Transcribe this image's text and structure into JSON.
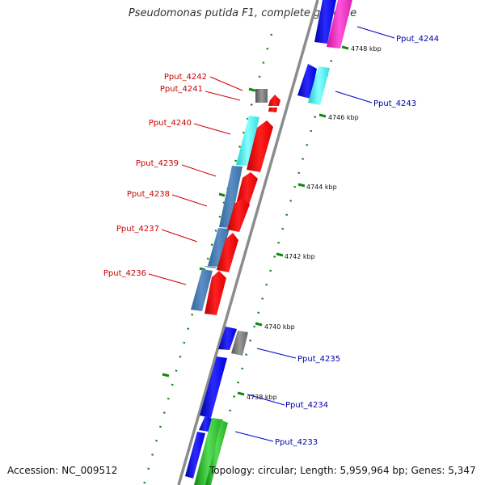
{
  "title": "Pseudomonas putida F1, complete genome",
  "accession": "Accession: NC_009512",
  "topology": "Topology: circular; Length: 5,959,964 bp; Genes: 5,347",
  "colors": {
    "reverse_label": "#cc0000",
    "forward_label": "#0000aa",
    "backbone": "#8c8c8c",
    "tick": "#118811"
  },
  "kbp_labels": [
    "4748 kbp",
    "4746 kbp",
    "4744 kbp",
    "4742 kbp",
    "4740 kbp",
    "4738 kbp"
  ],
  "reverse_genes": [
    "Pput_4242",
    "Pput_4241",
    "Pput_4240",
    "Pput_4239",
    "Pput_4238",
    "Pput_4237",
    "Pput_4236"
  ],
  "forward_genes": [
    "Pput_4244",
    "Pput_4243",
    "Pput_4235",
    "Pput_4234",
    "Pput_4233"
  ]
}
